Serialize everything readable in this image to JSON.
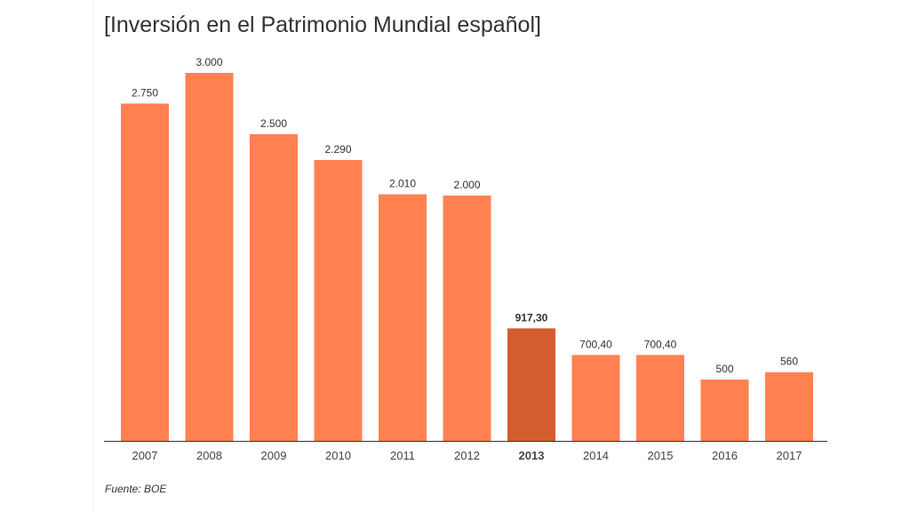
{
  "chart_data": {
    "type": "bar",
    "title": "[Inversión en el Patrimonio Mundial español]",
    "source": "Fuente: BOE",
    "categories": [
      "2007",
      "2008",
      "2009",
      "2010",
      "2011",
      "2012",
      "2013",
      "2014",
      "2015",
      "2016",
      "2017"
    ],
    "values": [
      2750,
      3000,
      2500,
      2290,
      2010,
      2000,
      917.3,
      700.4,
      700.4,
      500,
      560
    ],
    "value_labels": [
      "2.750",
      "3.000",
      "2.500",
      "2.290",
      "2.010",
      "2.000",
      "917,30",
      "700,40",
      "700,40",
      "500",
      "560"
    ],
    "highlight_index": 6,
    "ylim": [
      0,
      3000
    ],
    "grid": false,
    "colors": {
      "bar": "#FF8152",
      "highlight": "#D25E30",
      "axis": "#333333"
    }
  }
}
